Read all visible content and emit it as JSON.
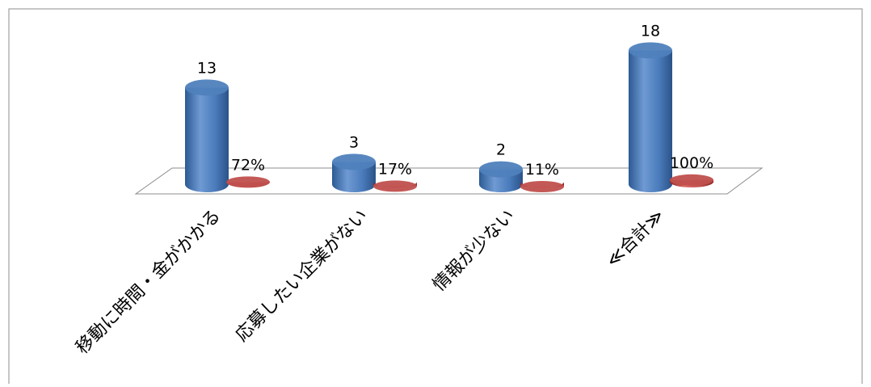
{
  "chart_data": {
    "type": "bar3d",
    "categories": [
      "移動に時間・金がかかる",
      "応募したい企業がない",
      "情報が少ない",
      "≪合計≫"
    ],
    "series": [
      {
        "name": null,
        "color": "#4f81bd",
        "values": [
          13,
          3,
          2,
          18
        ]
      },
      {
        "name": null,
        "color": "#c0504d",
        "values": [
          0.72,
          0.17,
          0.11,
          1.0
        ],
        "value_labels": [
          "72%",
          "17%",
          "11%",
          "100%"
        ]
      }
    ],
    "ylim": [
      0,
      20
    ]
  }
}
